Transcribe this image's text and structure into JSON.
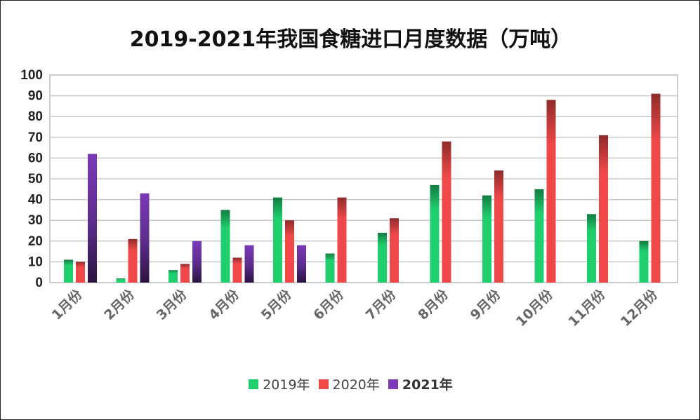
{
  "chart_data": {
    "type": "bar",
    "title": "2019-2021年我国食糖进口月度数据（万吨）",
    "categories": [
      "1月份",
      "2月份",
      "3月份",
      "4月份",
      "5月份",
      "6月份",
      "7月份",
      "8月份",
      "9月份",
      "10月份",
      "11月份",
      "12月份"
    ],
    "series": [
      {
        "name": "2019年",
        "color": "#1fcf6e",
        "values": [
          11,
          2,
          6,
          35,
          41,
          14,
          24,
          47,
          42,
          45,
          33,
          20
        ]
      },
      {
        "name": "2020年",
        "color": "#f04848",
        "values": [
          10,
          21,
          9,
          12,
          30,
          41,
          31,
          68,
          54,
          88,
          71,
          91
        ]
      },
      {
        "name": "2021年",
        "color": "#7a3ab8",
        "values": [
          62,
          43,
          20,
          18,
          18,
          null,
          null,
          null,
          null,
          null,
          null,
          null
        ]
      }
    ],
    "y_ticks": [
      0,
      10,
      20,
      30,
      40,
      50,
      60,
      70,
      80,
      90,
      100
    ],
    "ylim": [
      0,
      100
    ],
    "grid": true,
    "legend_position": "bottom"
  }
}
